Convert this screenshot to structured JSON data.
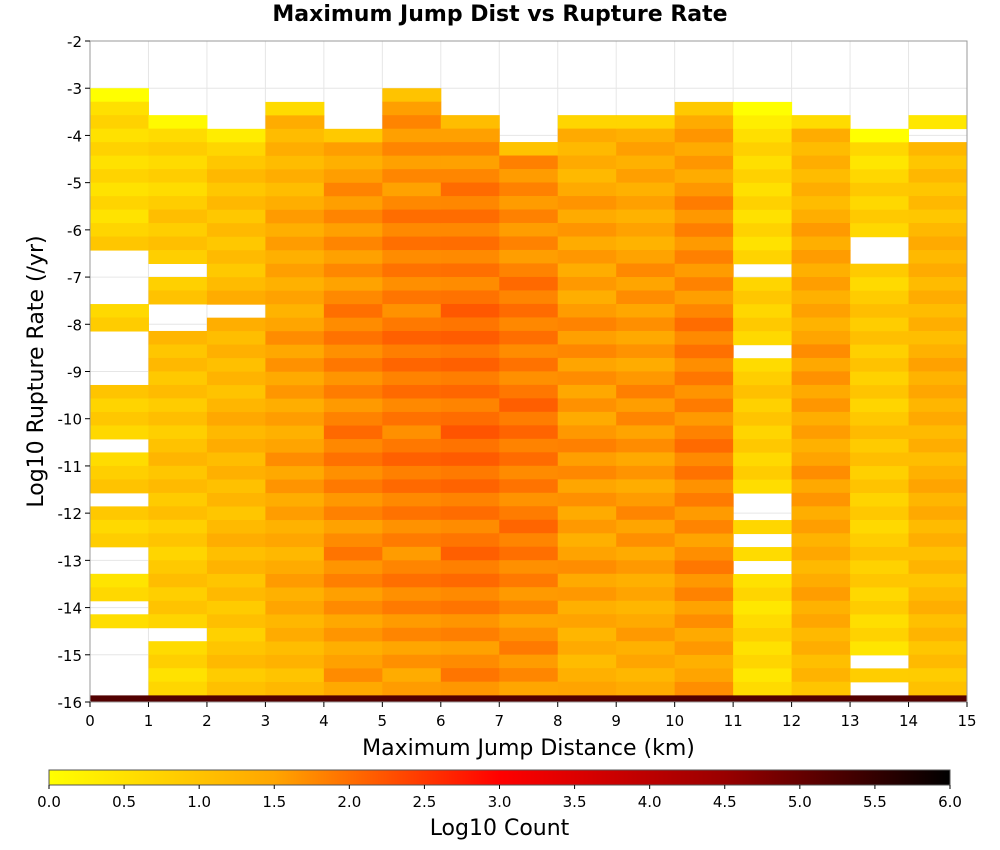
{
  "chart_data": {
    "type": "heatmap",
    "title": "Maximum Jump Dist vs Rupture Rate",
    "xlabel": "Maximum Jump Distance (km)",
    "ylabel": "Log10 Rupture Rate (/yr)",
    "xlim": [
      0,
      15
    ],
    "ylim": [
      -16,
      -2
    ],
    "x_ticks": [
      "0",
      "1",
      "2",
      "3",
      "4",
      "5",
      "6",
      "7",
      "8",
      "9",
      "10",
      "11",
      "12",
      "13",
      "14",
      "15"
    ],
    "y_ticks": [
      "-2",
      "-3",
      "-4",
      "-5",
      "-6",
      "-7",
      "-8",
      "-9",
      "-10",
      "-11",
      "-12",
      "-13",
      "-14",
      "-15",
      "-16"
    ],
    "x_bins": [
      0,
      1,
      2,
      3,
      4,
      5,
      6,
      7,
      8,
      9,
      10,
      11,
      12,
      13,
      14
    ],
    "y_bin_width": 0.2857,
    "y_top_per_column": [
      -3.0,
      -3.57,
      -3.86,
      -3.29,
      -3.86,
      -3.0,
      -3.57,
      -4.14,
      -3.57,
      -3.57,
      -3.29,
      -3.29,
      -3.57,
      -3.86,
      -3.57
    ],
    "mean_log10_count_per_column": [
      0.5,
      0.7,
      0.9,
      1.2,
      1.5,
      1.6,
      1.7,
      1.6,
      1.3,
      1.3,
      1.5,
      0.5,
      1.2,
      0.6,
      1.0
    ],
    "empty_bins": [
      {
        "x": 0,
        "y_from": -7.57,
        "y_to": -6.43
      },
      {
        "x": 0,
        "y_from": -9.29,
        "y_to": -8.14
      },
      {
        "x": 0,
        "y_from": -10.71,
        "y_to": -10.43
      },
      {
        "x": 0,
        "y_from": -11.86,
        "y_to": -11.57
      },
      {
        "x": 0,
        "y_from": -13.29,
        "y_to": -12.71
      },
      {
        "x": 0,
        "y_from": -14.14,
        "y_to": -13.86
      },
      {
        "x": 0,
        "y_from": -15.86,
        "y_to": -14.43
      },
      {
        "x": 1,
        "y_from": -7.0,
        "y_to": -6.71
      },
      {
        "x": 1,
        "y_from": -8.14,
        "y_to": -7.57
      },
      {
        "x": 1,
        "y_from": -14.71,
        "y_to": -14.43
      },
      {
        "x": 2,
        "y_from": -7.86,
        "y_to": -7.57
      },
      {
        "x": 11,
        "y_from": -7.0,
        "y_to": -6.71
      },
      {
        "x": 11,
        "y_from": -8.71,
        "y_to": -8.43
      },
      {
        "x": 11,
        "y_from": -12.14,
        "y_to": -11.57
      },
      {
        "x": 11,
        "y_from": -12.71,
        "y_to": -12.43
      },
      {
        "x": 11,
        "y_from": -13.29,
        "y_to": -13.0
      },
      {
        "x": 13,
        "y_from": -6.71,
        "y_to": -6.14
      },
      {
        "x": 13,
        "y_from": -15.29,
        "y_to": -15.0
      },
      {
        "x": 13,
        "y_from": -15.86,
        "y_to": -15.57
      },
      {
        "x": 14,
        "y_from": -4.14,
        "y_to": -3.86
      }
    ],
    "bottom_row": {
      "y_from": -16.0,
      "y_to": -15.86,
      "log10_count": 5.2
    },
    "colorbar": {
      "label": "Log10 Count",
      "min": 0.0,
      "max": 6.0,
      "ticks": [
        "0.0",
        "0.5",
        "1.0",
        "1.5",
        "2.0",
        "2.5",
        "3.0",
        "3.5",
        "4.0",
        "4.5",
        "5.0",
        "5.5",
        "6.0"
      ],
      "colors": [
        "#ffff00",
        "#ffa500",
        "#ff0000",
        "#000000"
      ]
    },
    "grid": true
  }
}
